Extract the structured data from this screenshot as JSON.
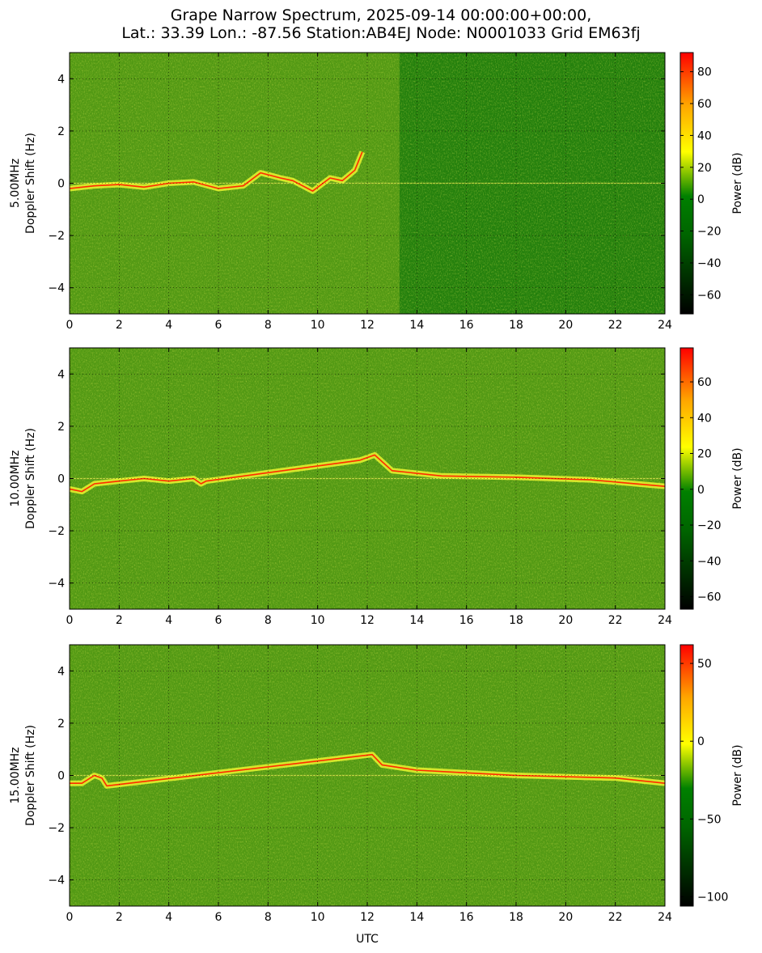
{
  "figure": {
    "title_line1": "Grape Narrow Spectrum, 2025-09-14 00:00:00+00:00,",
    "title_line2": "Lat.: 33.39 Lon.: -87.56 Station:AB4EJ Node: N0001033 Grid EM63fj",
    "xlabel": "UTC"
  },
  "colors": {
    "cmap_stops": [
      "#000000",
      "#006400",
      "#008000",
      "#ffff00",
      "#ffa500",
      "#ff0000"
    ],
    "axis": "#000000",
    "grid": "#000000"
  },
  "chart_data": [
    {
      "type": "heatmap",
      "panel": "5.00MHz",
      "ylabel_line1": "5.00MHz",
      "ylabel_line2": "Doppler Shift (Hz)",
      "xlabel": "",
      "xlim": [
        0,
        24
      ],
      "ylim": [
        -5,
        5
      ],
      "x_ticks": [
        0,
        2,
        4,
        6,
        8,
        10,
        12,
        14,
        16,
        18,
        20,
        22,
        24
      ],
      "y_ticks": [
        -4,
        -2,
        0,
        2,
        4
      ],
      "grid": true,
      "colorbar": {
        "label": "Power (dB)",
        "range": [
          -72,
          92
        ],
        "ticks": [
          -60,
          -40,
          -20,
          0,
          20,
          40,
          60,
          80
        ]
      },
      "trace": [
        [
          0,
          -0.2
        ],
        [
          1,
          -0.1
        ],
        [
          2,
          -0.05
        ],
        [
          3,
          -0.15
        ],
        [
          4,
          0.0
        ],
        [
          5,
          0.05
        ],
        [
          6,
          -0.2
        ],
        [
          7,
          -0.1
        ],
        [
          7.7,
          0.4
        ],
        [
          8.5,
          0.2
        ],
        [
          9,
          0.1
        ],
        [
          9.8,
          -0.3
        ],
        [
          10.5,
          0.2
        ],
        [
          11,
          0.1
        ],
        [
          11.5,
          0.5
        ],
        [
          11.8,
          1.2
        ]
      ],
      "trace_end_hours": 11.8
    },
    {
      "type": "heatmap",
      "panel": "10.00MHz",
      "ylabel_line1": "10.00MHz",
      "ylabel_line2": "Doppler Shift (Hz)",
      "xlabel": "",
      "xlim": [
        0,
        24
      ],
      "ylim": [
        -5,
        5
      ],
      "x_ticks": [
        0,
        2,
        4,
        6,
        8,
        10,
        12,
        14,
        16,
        18,
        20,
        22,
        24
      ],
      "y_ticks": [
        -4,
        -2,
        0,
        2,
        4
      ],
      "grid": true,
      "colorbar": {
        "label": "Power (dB)",
        "range": [
          -67,
          79
        ],
        "ticks": [
          -60,
          -40,
          -20,
          0,
          20,
          40,
          60
        ]
      },
      "trace": [
        [
          0,
          -0.4
        ],
        [
          0.5,
          -0.5
        ],
        [
          1,
          -0.2
        ],
        [
          2,
          -0.1
        ],
        [
          3,
          0.0
        ],
        [
          4,
          -0.1
        ],
        [
          5,
          0.0
        ],
        [
          5.3,
          -0.2
        ],
        [
          5.5,
          -0.1
        ],
        [
          11.7,
          0.7
        ],
        [
          12.3,
          0.9
        ],
        [
          13,
          0.3
        ],
        [
          15,
          0.1
        ],
        [
          18,
          0.05
        ],
        [
          21,
          -0.05
        ],
        [
          24,
          -0.3
        ]
      ],
      "trace_end_hours": 24
    },
    {
      "type": "heatmap",
      "panel": "15.00MHz",
      "ylabel_line1": "15.00MHz",
      "ylabel_line2": "Doppler Shift (Hz)",
      "xlabel": "UTC",
      "xlim": [
        0,
        24
      ],
      "ylim": [
        -5,
        5
      ],
      "x_ticks": [
        0,
        2,
        4,
        6,
        8,
        10,
        12,
        14,
        16,
        18,
        20,
        22,
        24
      ],
      "y_ticks": [
        -4,
        -2,
        0,
        2,
        4
      ],
      "grid": true,
      "colorbar": {
        "label": "Power (dB)",
        "range": [
          -106,
          62
        ],
        "ticks": [
          -100,
          -50,
          0,
          50
        ]
      },
      "trace": [
        [
          0,
          -0.3
        ],
        [
          0.5,
          -0.3
        ],
        [
          1,
          0.0
        ],
        [
          1.3,
          -0.1
        ],
        [
          1.5,
          -0.4
        ],
        [
          12.2,
          0.8
        ],
        [
          12.6,
          0.4
        ],
        [
          14,
          0.2
        ],
        [
          16,
          0.1
        ],
        [
          18,
          0.0
        ],
        [
          20,
          -0.05
        ],
        [
          22,
          -0.1
        ],
        [
          24,
          -0.3
        ]
      ],
      "trace_end_hours": 24
    }
  ]
}
